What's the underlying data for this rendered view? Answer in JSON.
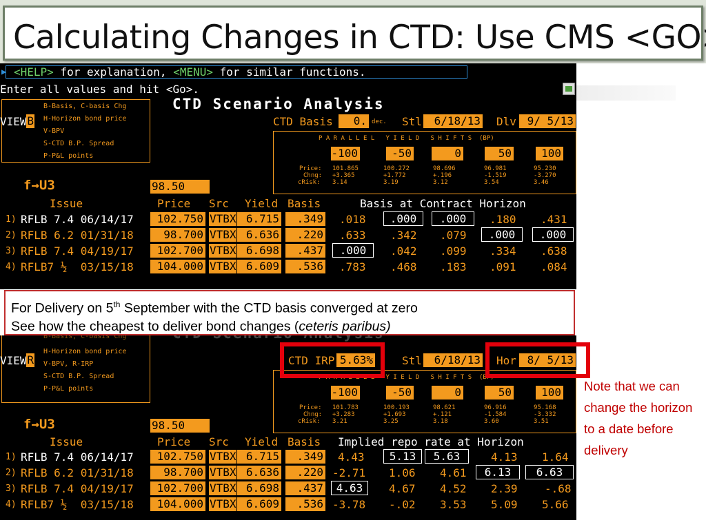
{
  "slide": {
    "title": "Calculating Changes in CTD: Use CMS <GO>"
  },
  "top": {
    "help_help": "<HELP>",
    "help_mid": " for explanation, ",
    "help_menu": "<MENU>",
    "help_end": " for similar functions.",
    "enter": "Enter all values and hit <Go>.",
    "menu": [
      "B-Basis, C-basis Chg",
      "H-Horizon bond price",
      "V-BPV",
      "S-CTD B.P. Spread",
      "P-P&L points"
    ],
    "view_label": "VIEW",
    "view_value": "B",
    "heading": "CTD Scenario Analysis",
    "basis_label": "CTD Basis",
    "basis_value": "0.",
    "basis_unit": "dec.",
    "stl_label": "Stl",
    "stl_value": "6/18/13",
    "dlv_label": "Dlv",
    "dlv_value": "9/ 5/13",
    "shift_title": "P A R A L L E L   Y I E L D   S H I F T S  (BP)",
    "shifts": [
      "-100",
      "-50",
      "0",
      "50",
      "100"
    ],
    "price_label": "Price:",
    "chng_label": "Chng:",
    "crisk_label": "cRisk:",
    "prices": [
      "101.865",
      "100.272",
      "98.696",
      "96.981",
      "95.230"
    ],
    "changes": [
      "+3.365",
      "+1.772",
      "+.196",
      "-1.519",
      "-3.270"
    ],
    "crisks": [
      "3.14",
      "3.19",
      "3.12",
      "3.54",
      "3.46"
    ],
    "contract": "f→U3",
    "contract_price": "98.50",
    "col_issue": "Issue",
    "col_price": "Price",
    "col_src": "Src",
    "col_yield": "Yield",
    "col_basis": "Basis",
    "horizon_header": "Basis at Contract Horizon",
    "rows": [
      {
        "num": "1)",
        "issue": "RFLB 7.4 06/14/17",
        "price": "102.750",
        "src": "VTBX",
        "yield": "6.715",
        "basis": ".349",
        "vals": [
          ".018",
          ".000",
          ".000",
          ".180",
          ".431"
        ]
      },
      {
        "num": "2)",
        "issue": "RFLB 6.2 01/31/18",
        "price": "98.700",
        "src": "VTBX",
        "yield": "6.636",
        "basis": ".220",
        "vals": [
          ".633",
          ".342",
          ".079",
          ".000",
          ".000"
        ]
      },
      {
        "num": "3)",
        "issue": "RFLB 7.4 04/19/17",
        "price": "102.700",
        "src": "VTBX",
        "yield": "6.698",
        "basis": ".437",
        "vals": [
          ".000",
          ".042",
          ".099",
          ".334",
          ".638"
        ]
      },
      {
        "num": "4)",
        "issue": "RFLB7 ½  03/15/18",
        "price": "104.000",
        "src": "VTBX",
        "yield": "6.609",
        "basis": ".536",
        "vals": [
          ".783",
          ".468",
          ".183",
          ".091",
          ".084"
        ]
      }
    ]
  },
  "callout": {
    "line1_a": "For Delivery on 5",
    "line1_sup": "th",
    "line1_b": " September with the CTD basis converged at zero",
    "line2_a": "See how the cheapest to deliver bond changes (",
    "line2_em": "ceteris paribus)"
  },
  "bottom": {
    "menu": [
      "B-Basis, C-basis Chg",
      "H-Horizon bond price",
      "V-BPV, R-IRP",
      "S-CTD B.P. Spread",
      "P-P&L points"
    ],
    "view_label": "VIEW",
    "view_value": "R",
    "irp_label": "CTD IRP",
    "irp_value": "5.63%",
    "stl_label": "Stl",
    "stl_value": "6/18/13",
    "hor_label": "Hor",
    "hor_value": "8/ 5/13",
    "shift_title": "P A R A L L E L   Y I E L D   S H I F T S  (BP)",
    "shifts": [
      "-100",
      "-50",
      "0",
      "50",
      "100"
    ],
    "price_label": "Price:",
    "chng_label": "Chng:",
    "crisk_label": "cRisk:",
    "prices": [
      "101.783",
      "100.193",
      "98.621",
      "96.916",
      "95.168"
    ],
    "changes": [
      "+3.283",
      "+1.693",
      "+.121",
      "-1.584",
      "-3.332"
    ],
    "crisks": [
      "3.21",
      "3.25",
      "3.18",
      "3.60",
      "3.51"
    ],
    "contract": "f→U3",
    "contract_price": "98.50",
    "col_issue": "Issue",
    "col_price": "Price",
    "col_src": "Src",
    "col_yield": "Yield",
    "col_basis": "Basis",
    "horizon_header": "Implied repo rate at Horizon",
    "rows": [
      {
        "num": "1)",
        "issue": "RFLB 7.4 06/14/17",
        "price": "102.750",
        "src": "VTBX",
        "yield": "6.715",
        "basis": ".349",
        "vals": [
          "4.43",
          "5.13",
          "5.63",
          "4.13",
          "1.64"
        ]
      },
      {
        "num": "2)",
        "issue": "RFLB 6.2 01/31/18",
        "price": "98.700",
        "src": "VTBX",
        "yield": "6.636",
        "basis": ".220",
        "vals": [
          "-2.71",
          "1.06",
          "4.61",
          "6.13",
          "6.63"
        ]
      },
      {
        "num": "3)",
        "issue": "RFLB 7.4 04/19/17",
        "price": "102.700",
        "src": "VTBX",
        "yield": "6.698",
        "basis": ".437",
        "vals": [
          "4.63",
          "4.67",
          "4.52",
          "2.39",
          "-.68"
        ]
      },
      {
        "num": "4)",
        "issue": "RFLB7 ½  03/15/18",
        "price": "104.000",
        "src": "VTBX",
        "yield": "6.609",
        "basis": ".536",
        "vals": [
          "-3.78",
          "-.02",
          "3.53",
          "5.09",
          "5.66"
        ]
      }
    ]
  },
  "note": {
    "text": "Note that we can change the horizon to a date before delivery"
  },
  "colors": {
    "accent": "#f39a1e",
    "highlight": "#e3000b",
    "note": "#c00000"
  }
}
